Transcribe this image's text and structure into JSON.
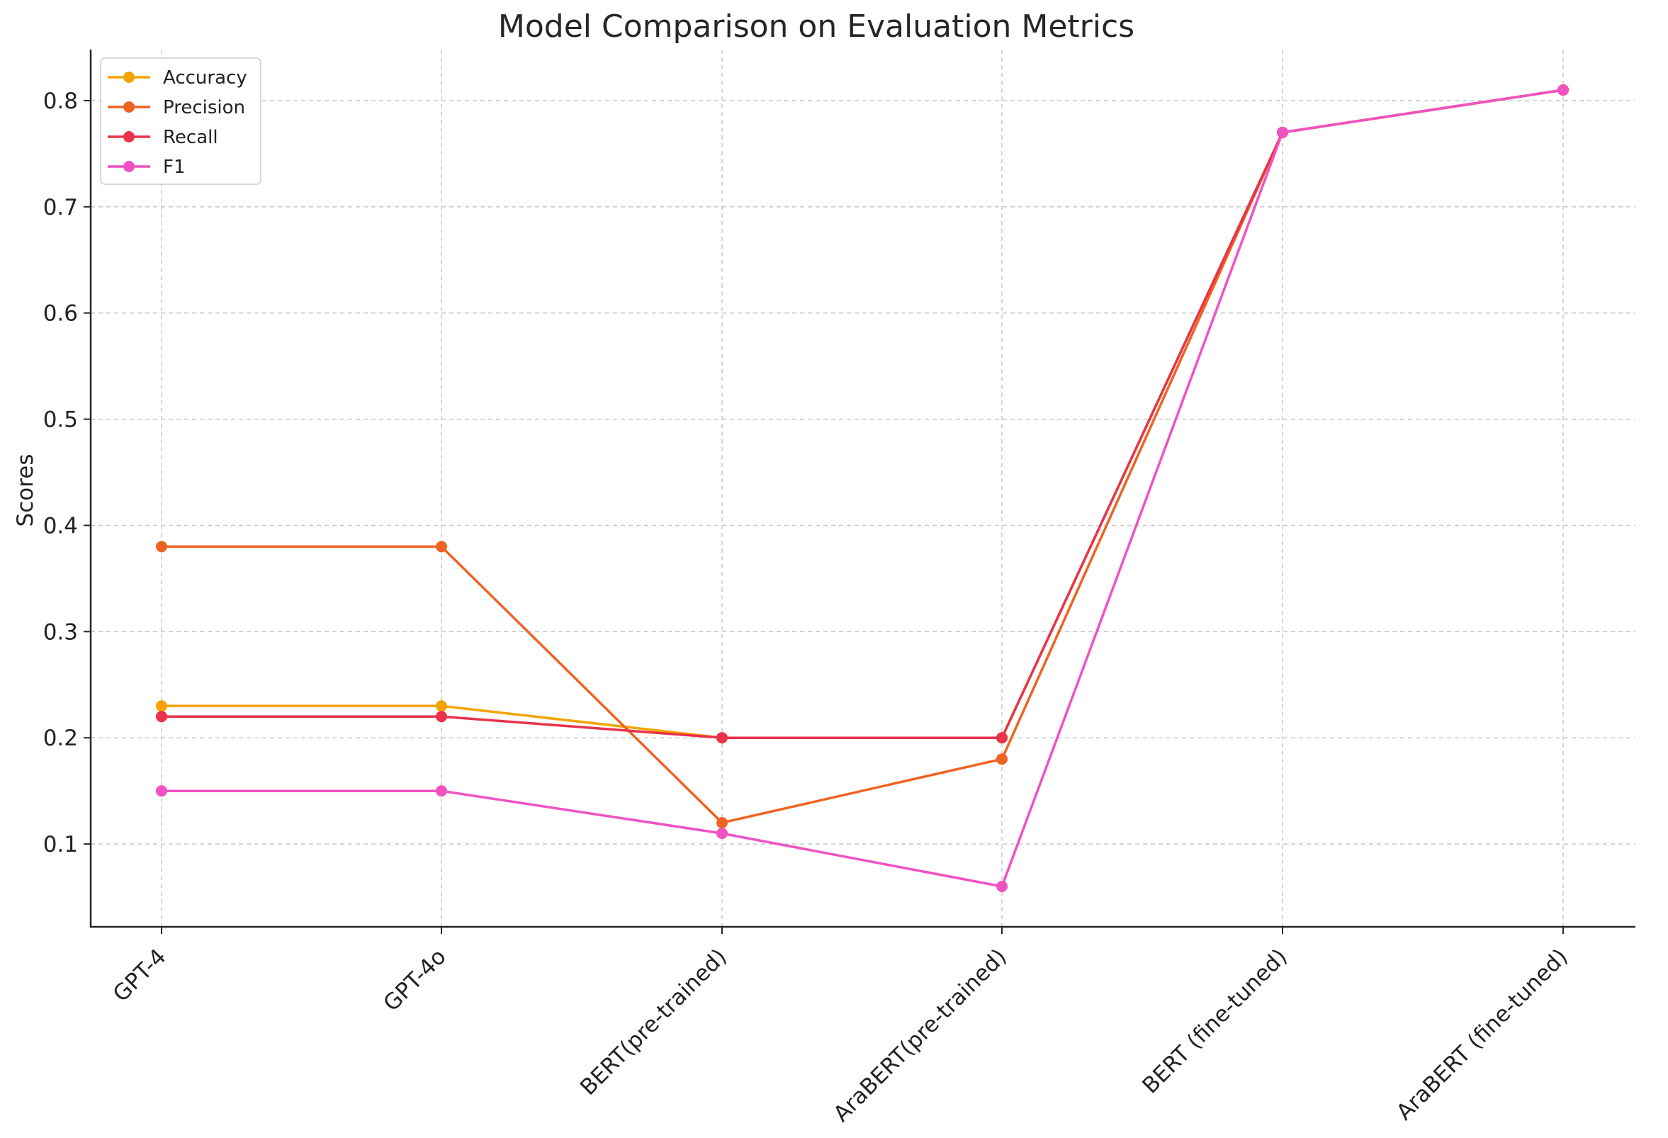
{
  "chart_data": {
    "type": "line",
    "title": "Model Comparison on Evaluation Metrics",
    "xlabel": "",
    "ylabel": "Scores",
    "categories": [
      "GPT-4",
      "GPT-4o",
      "BERT(pre-trained)",
      "AraBERT(pre-trained)",
      "BERT (fine-tuned)",
      "AraBERT (fine-tuned)"
    ],
    "ylim": [
      0.022,
      0.848
    ],
    "yticks": [
      "0.1",
      "0.2",
      "0.3",
      "0.4",
      "0.5",
      "0.6",
      "0.7",
      "0.8"
    ],
    "grid": true,
    "legend_position": "top-left",
    "series": [
      {
        "name": "Accuracy",
        "color": "#F5A300",
        "values": [
          0.23,
          0.23,
          0.2,
          0.2,
          0.77,
          0.81
        ]
      },
      {
        "name": "Precision",
        "color": "#EE6322",
        "values": [
          0.38,
          0.38,
          0.12,
          0.18,
          0.77,
          0.81
        ]
      },
      {
        "name": "Recall",
        "color": "#E8334A",
        "values": [
          0.22,
          0.22,
          0.2,
          0.2,
          0.77,
          0.81
        ]
      },
      {
        "name": "F1",
        "color": "#F052C3",
        "values": [
          0.15,
          0.15,
          0.11,
          0.06,
          0.77,
          0.81
        ]
      }
    ]
  }
}
